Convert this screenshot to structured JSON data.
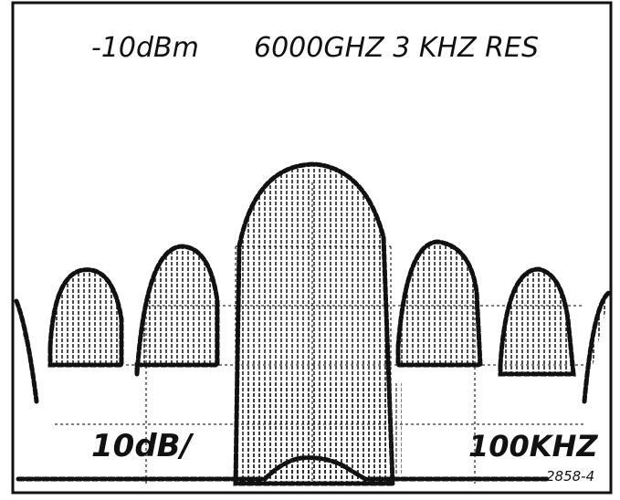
{
  "header": {
    "reference_level": "-10dBm",
    "settings": "6000GHZ 3 KHZ RES"
  },
  "footer": {
    "scale": "10dB/",
    "span": "100KHZ",
    "figure_id": "2858-4"
  }
}
